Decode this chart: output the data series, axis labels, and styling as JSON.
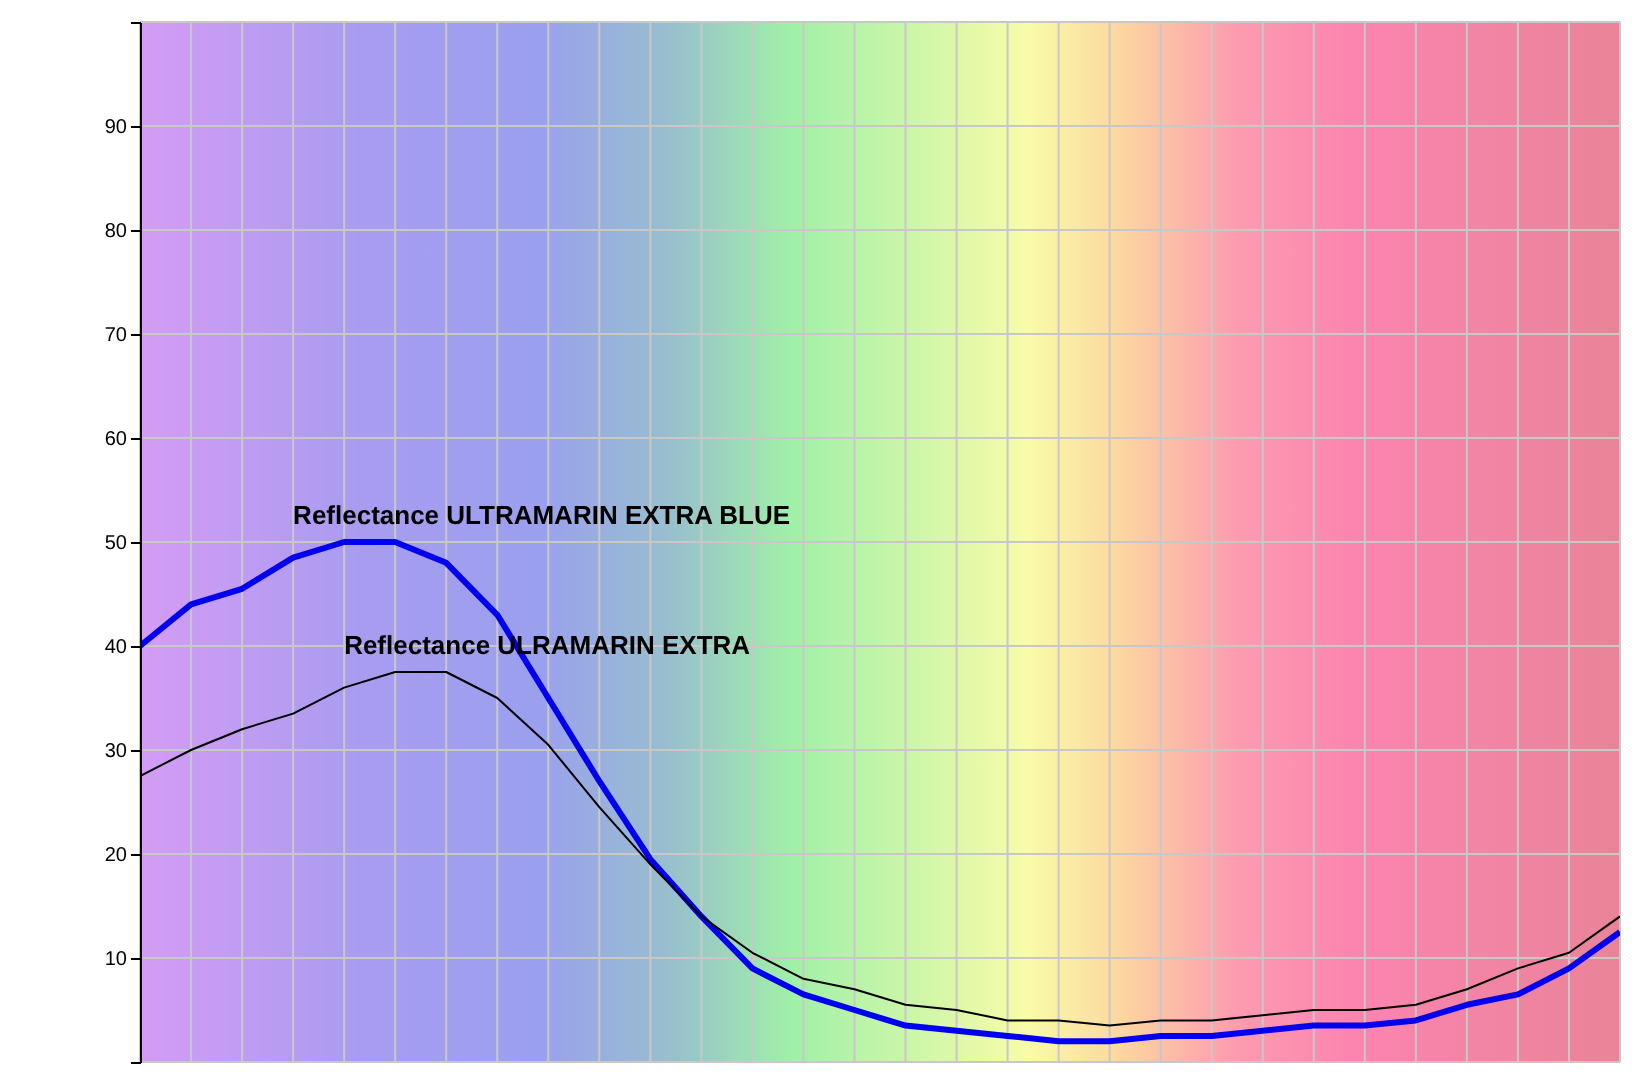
{
  "chart_data": {
    "type": "line",
    "categories": [
      null,
      null,
      null,
      null,
      null,
      null,
      null,
      null,
      null,
      null,
      null,
      null,
      null,
      null,
      null,
      null,
      null,
      null,
      null,
      null,
      null,
      null,
      null,
      null,
      null,
      null,
      null,
      null,
      null,
      null
    ],
    "series": [
      {
        "name": "Reflectance ULTRAMARIN EXTRA BLUE",
        "color": "#0000ee",
        "values": [
          40,
          44,
          45.5,
          48.5,
          50,
          50,
          48,
          43,
          35,
          27,
          19.5,
          14,
          9,
          6.5,
          5,
          3.5,
          3,
          2.5,
          2,
          2,
          2.5,
          2.5,
          3,
          3.5,
          3.5,
          4,
          5.5,
          6.5,
          9,
          12.5
        ]
      },
      {
        "name": "Reflectance ULRAMARIN EXTRA",
        "color": "#000000",
        "values": [
          27.5,
          30,
          32,
          33.5,
          36,
          37.5,
          37.5,
          35,
          30.5,
          24.5,
          19,
          14,
          10.5,
          8,
          7,
          5.5,
          5,
          4,
          4,
          3.5,
          4,
          4,
          4.5,
          5,
          5,
          5.5,
          7,
          9,
          10.5,
          14
        ]
      }
    ],
    "ylim": [
      0,
      100
    ],
    "yticks": [
      {
        "value": 0,
        "label": null
      },
      10,
      20,
      30,
      40,
      50,
      60,
      70,
      80,
      90,
      {
        "value": 100,
        "label": null
      }
    ],
    "tick_labels": "y",
    "grid": true,
    "marker": "none",
    "line_style": "solid"
  }
}
